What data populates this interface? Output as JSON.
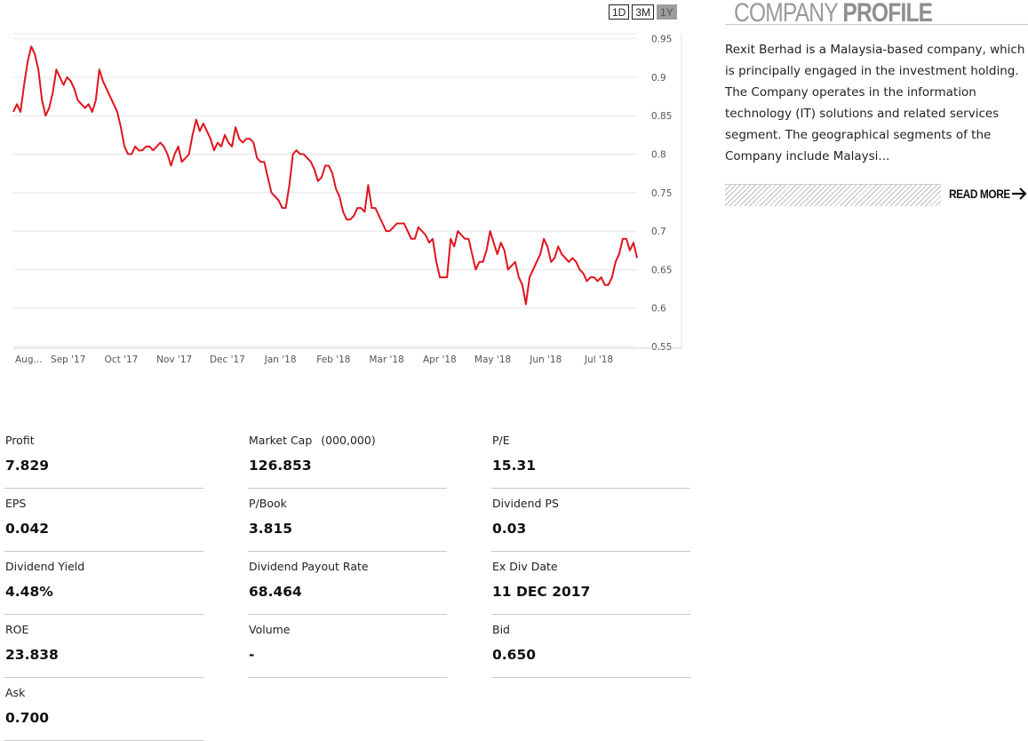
{
  "range_buttons": [
    {
      "label": "1D",
      "active": false
    },
    {
      "label": "3M",
      "active": false
    },
    {
      "label": "1Y",
      "active": true
    }
  ],
  "chart_data": {
    "type": "line",
    "title": "",
    "xlabel": "",
    "ylabel": "",
    "ylim": [
      0.55,
      0.96
    ],
    "y_ticks": [
      "0.95",
      "0.9",
      "0.85",
      "0.8",
      "0.75",
      "0.7",
      "0.65",
      "0.6",
      "0.55"
    ],
    "x_ticks": [
      "Aug...",
      "Sep '17",
      "Oct '17",
      "Nov '17",
      "Dec '17",
      "Jan '18",
      "Feb '18",
      "Mar '18",
      "Apr '18",
      "May '18",
      "Jun '18",
      "Jul '18"
    ],
    "grid": true,
    "line_color": "#e0141e",
    "series": [
      {
        "values": [
          0.855,
          0.865,
          0.855,
          0.89,
          0.92,
          0.94,
          0.93,
          0.91,
          0.87,
          0.85,
          0.86,
          0.88,
          0.91,
          0.9,
          0.89,
          0.9,
          0.895,
          0.885,
          0.87,
          0.865,
          0.86,
          0.865,
          0.855,
          0.87,
          0.91,
          0.895,
          0.885,
          0.875,
          0.865,
          0.855,
          0.835,
          0.81,
          0.8,
          0.8,
          0.81,
          0.805,
          0.805,
          0.81,
          0.81,
          0.805,
          0.81,
          0.815,
          0.81,
          0.8,
          0.785,
          0.8,
          0.81,
          0.79,
          0.795,
          0.8,
          0.825,
          0.845,
          0.83,
          0.84,
          0.83,
          0.82,
          0.805,
          0.815,
          0.81,
          0.825,
          0.815,
          0.81,
          0.835,
          0.82,
          0.815,
          0.82,
          0.82,
          0.815,
          0.795,
          0.79,
          0.79,
          0.77,
          0.75,
          0.745,
          0.74,
          0.73,
          0.73,
          0.76,
          0.8,
          0.805,
          0.8,
          0.8,
          0.795,
          0.79,
          0.78,
          0.765,
          0.77,
          0.785,
          0.785,
          0.775,
          0.755,
          0.745,
          0.725,
          0.715,
          0.715,
          0.72,
          0.73,
          0.73,
          0.725,
          0.76,
          0.73,
          0.73,
          0.72,
          0.71,
          0.7,
          0.7,
          0.705,
          0.71,
          0.71,
          0.71,
          0.7,
          0.69,
          0.69,
          0.705,
          0.7,
          0.695,
          0.685,
          0.69,
          0.66,
          0.64,
          0.64,
          0.64,
          0.69,
          0.68,
          0.7,
          0.695,
          0.69,
          0.69,
          0.67,
          0.65,
          0.66,
          0.66,
          0.675,
          0.7,
          0.685,
          0.67,
          0.685,
          0.675,
          0.65,
          0.655,
          0.66,
          0.64,
          0.63,
          0.605,
          0.64,
          0.65,
          0.66,
          0.67,
          0.69,
          0.68,
          0.66,
          0.665,
          0.68,
          0.67,
          0.665,
          0.66,
          0.665,
          0.66,
          0.65,
          0.645,
          0.635,
          0.64,
          0.64,
          0.635,
          0.64,
          0.63,
          0.63,
          0.64,
          0.66,
          0.67,
          0.69,
          0.69,
          0.675,
          0.685,
          0.665
        ]
      }
    ]
  },
  "profile": {
    "title_light": "COMPANY",
    "title_bold": "PROFILE",
    "description": "Rexit Berhad is a Malaysia-based company, which is principally engaged in the investment holding. The Company operates in the information technology (IT) solutions and related services segment. The geographical segments of the Company include Malaysi...",
    "read_more": "READ MORE",
    "arrow_icon": "arrow-right-icon"
  },
  "stats": [
    {
      "label": "Profit",
      "unit": "",
      "value": "7.829"
    },
    {
      "label": "Market Cap",
      "unit": "(000,000)",
      "value": "126.853"
    },
    {
      "label": "P/E",
      "unit": "",
      "value": "15.31"
    },
    {
      "label": "EPS",
      "unit": "",
      "value": "0.042"
    },
    {
      "label": "P/Book",
      "unit": "",
      "value": "3.815"
    },
    {
      "label": "Dividend PS",
      "unit": "",
      "value": "0.03"
    },
    {
      "label": "Dividend Yield",
      "unit": "",
      "value": "4.48%"
    },
    {
      "label": "Dividend Payout Rate",
      "unit": "",
      "value": "68.464"
    },
    {
      "label": "Ex Div Date",
      "unit": "",
      "value": "11 DEC 2017"
    },
    {
      "label": "ROE",
      "unit": "",
      "value": "23.838"
    },
    {
      "label": "Volume",
      "unit": "",
      "value": "-"
    },
    {
      "label": "Bid",
      "unit": "",
      "value": "0.650"
    },
    {
      "label": "Ask",
      "unit": "",
      "value": "0.700"
    }
  ]
}
